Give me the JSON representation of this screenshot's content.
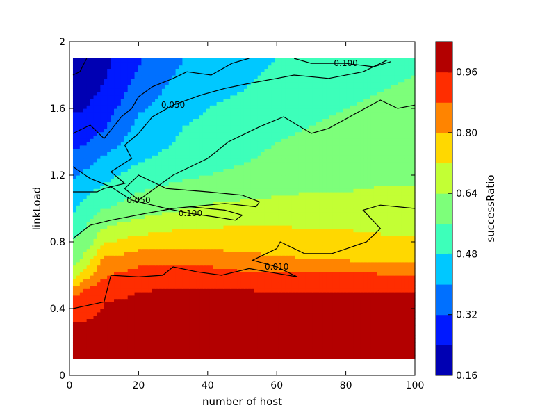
{
  "chart_data": {
    "type": "heatmap",
    "subtype": "filled-contour",
    "title": "",
    "xlabel": "number of host",
    "ylabel": "linkLoad",
    "xlim": [
      0,
      100
    ],
    "ylim": [
      0,
      2
    ],
    "x_ticks": [
      "0",
      "20",
      "40",
      "60",
      "80",
      "100"
    ],
    "y_ticks": [
      "0",
      "0.4",
      "0.8",
      "1.2",
      "1.6",
      "2"
    ],
    "grid": false,
    "colorbar": {
      "label": "successRatio",
      "range": [
        0.16,
        1.04
      ],
      "tick_labels": [
        "0.16",
        "0.32",
        "0.48",
        "0.64",
        "0.80",
        "0.96"
      ],
      "levels": [
        0.16,
        0.24,
        0.32,
        0.4,
        0.48,
        0.56,
        0.64,
        0.72,
        0.8,
        0.88,
        0.96,
        1.04
      ],
      "colors": [
        "#0000b3",
        "#0019ff",
        "#0070ff",
        "#00c8ff",
        "#3dffba",
        "#7dff7a",
        "#c3ff34",
        "#ffd800",
        "#ff8400",
        "#ff2d00",
        "#b30000"
      ]
    },
    "x": [
      1,
      5,
      10,
      20,
      30,
      40,
      50,
      60,
      70,
      80,
      90,
      100
    ],
    "y": [
      0.1,
      0.3,
      0.5,
      0.6,
      0.7,
      0.8,
      0.9,
      1.0,
      1.1,
      1.2,
      1.3,
      1.4,
      1.5,
      1.6,
      1.7,
      1.8,
      1.9
    ],
    "z": [
      [
        0.98,
        0.98,
        0.99,
        0.99,
        0.99,
        0.99,
        0.99,
        0.99,
        0.99,
        0.99,
        0.99,
        0.99
      ],
      [
        0.97,
        0.97,
        0.98,
        0.98,
        0.98,
        0.99,
        0.99,
        0.99,
        0.99,
        0.99,
        0.99,
        0.99
      ],
      [
        0.86,
        0.9,
        0.95,
        0.96,
        0.97,
        0.97,
        0.97,
        0.96,
        0.96,
        0.96,
        0.96,
        0.96
      ],
      [
        0.66,
        0.78,
        0.87,
        0.92,
        0.93,
        0.93,
        0.9,
        0.9,
        0.9,
        0.9,
        0.89,
        0.89
      ],
      [
        0.6,
        0.67,
        0.81,
        0.84,
        0.84,
        0.84,
        0.82,
        0.81,
        0.8,
        0.79,
        0.78,
        0.77
      ],
      [
        0.57,
        0.6,
        0.71,
        0.76,
        0.77,
        0.77,
        0.77,
        0.76,
        0.75,
        0.75,
        0.74,
        0.73
      ],
      [
        0.52,
        0.56,
        0.63,
        0.67,
        0.7,
        0.71,
        0.72,
        0.72,
        0.71,
        0.71,
        0.7,
        0.7
      ],
      [
        0.47,
        0.51,
        0.56,
        0.6,
        0.63,
        0.65,
        0.66,
        0.67,
        0.68,
        0.68,
        0.68,
        0.68
      ],
      [
        0.43,
        0.47,
        0.5,
        0.56,
        0.59,
        0.61,
        0.62,
        0.63,
        0.64,
        0.64,
        0.65,
        0.65
      ],
      [
        0.39,
        0.42,
        0.46,
        0.51,
        0.54,
        0.56,
        0.58,
        0.6,
        0.62,
        0.62,
        0.62,
        0.63
      ],
      [
        0.35,
        0.37,
        0.41,
        0.47,
        0.5,
        0.53,
        0.55,
        0.58,
        0.6,
        0.61,
        0.61,
        0.62
      ],
      [
        0.3,
        0.31,
        0.36,
        0.44,
        0.48,
        0.51,
        0.53,
        0.56,
        0.58,
        0.6,
        0.6,
        0.6
      ],
      [
        0.26,
        0.27,
        0.31,
        0.42,
        0.47,
        0.5,
        0.52,
        0.54,
        0.56,
        0.58,
        0.59,
        0.59
      ],
      [
        0.23,
        0.24,
        0.28,
        0.39,
        0.44,
        0.48,
        0.5,
        0.52,
        0.54,
        0.56,
        0.57,
        0.58
      ],
      [
        0.21,
        0.22,
        0.25,
        0.36,
        0.42,
        0.46,
        0.48,
        0.5,
        0.53,
        0.55,
        0.56,
        0.57
      ],
      [
        0.2,
        0.21,
        0.23,
        0.33,
        0.4,
        0.45,
        0.47,
        0.49,
        0.52,
        0.54,
        0.55,
        0.56
      ],
      [
        0.19,
        0.2,
        0.22,
        0.31,
        0.38,
        0.44,
        0.46,
        0.48,
        0.51,
        0.53,
        0.54,
        0.55
      ]
    ],
    "contour_lines": [
      {
        "level": "0.010",
        "points": [
          [
            1,
            0.4
          ],
          [
            10,
            0.44
          ],
          [
            12,
            0.6
          ],
          [
            20,
            0.59
          ],
          [
            27,
            0.6
          ],
          [
            30,
            0.65
          ],
          [
            37,
            0.62
          ],
          [
            44,
            0.6
          ],
          [
            52,
            0.64
          ],
          [
            66,
            0.59
          ],
          [
            60,
            0.65
          ],
          [
            53,
            0.69
          ],
          [
            60,
            0.76
          ],
          [
            61,
            0.8
          ],
          [
            68,
            0.73
          ],
          [
            76,
            0.73
          ],
          [
            86,
            0.8
          ],
          [
            90,
            0.88
          ],
          [
            85,
            0.99
          ],
          [
            90,
            1.02
          ],
          [
            100,
            1.0
          ]
        ]
      },
      {
        "level": "0.050",
        "points": [
          [
            1,
            0.82
          ],
          [
            6,
            0.9
          ],
          [
            12,
            0.93
          ],
          [
            22,
            0.97
          ],
          [
            30,
            1.0
          ],
          [
            45,
            1.03
          ],
          [
            54,
            1.01
          ],
          [
            55,
            1.04
          ],
          [
            50,
            1.08
          ],
          [
            40,
            1.1
          ],
          [
            28,
            1.12
          ],
          [
            20,
            1.2
          ],
          [
            16,
            1.12
          ],
          [
            20,
            1.05
          ],
          [
            30,
            1.2
          ],
          [
            35,
            1.25
          ],
          [
            40,
            1.3
          ],
          [
            46,
            1.4
          ],
          [
            55,
            1.49
          ],
          [
            62,
            1.55
          ],
          [
            70,
            1.45
          ],
          [
            75,
            1.48
          ],
          [
            82,
            1.56
          ],
          [
            90,
            1.65
          ],
          [
            95,
            1.6
          ],
          [
            100,
            1.62
          ]
        ]
      },
      {
        "level": "0.050",
        "points": [
          [
            1,
            1.1
          ],
          [
            8,
            1.1
          ],
          [
            10,
            1.12
          ],
          [
            16,
            1.15
          ],
          [
            12,
            1.22
          ],
          [
            18,
            1.3
          ],
          [
            16,
            1.38
          ],
          [
            20,
            1.45
          ],
          [
            24,
            1.55
          ],
          [
            30,
            1.62
          ],
          [
            38,
            1.68
          ],
          [
            45,
            1.72
          ],
          [
            52,
            1.75
          ],
          [
            60,
            1.78
          ],
          [
            65,
            1.8
          ],
          [
            75,
            1.78
          ],
          [
            85,
            1.82
          ],
          [
            92,
            1.89
          ]
        ]
      },
      {
        "level": "0.100",
        "points": [
          [
            1,
            1.25
          ],
          [
            6,
            1.18
          ],
          [
            12,
            1.13
          ],
          [
            18,
            1.05
          ],
          [
            22,
            1.03
          ],
          [
            28,
            1.0
          ],
          [
            35,
            0.97
          ],
          [
            42,
            0.95
          ],
          [
            48,
            0.93
          ],
          [
            50,
            0.96
          ],
          [
            45,
            0.99
          ],
          [
            35,
            1.01
          ]
        ]
      },
      {
        "level": "0.100",
        "points": [
          [
            65,
            1.9
          ],
          [
            70,
            1.87
          ],
          [
            80,
            1.87
          ],
          [
            88,
            1.85
          ],
          [
            93,
            1.88
          ]
        ]
      },
      {
        "level": "",
        "points": [
          [
            1,
            1.45
          ],
          [
            6,
            1.5
          ],
          [
            10,
            1.42
          ],
          [
            12,
            1.47
          ],
          [
            15,
            1.55
          ],
          [
            18,
            1.6
          ],
          [
            20,
            1.67
          ],
          [
            24,
            1.73
          ],
          [
            30,
            1.78
          ],
          [
            34,
            1.82
          ],
          [
            41,
            1.8
          ],
          [
            47,
            1.87
          ],
          [
            52,
            1.9
          ]
        ]
      },
      {
        "level": "",
        "points": [
          [
            5,
            1.9
          ],
          [
            3,
            1.82
          ],
          [
            1,
            1.8
          ]
        ]
      }
    ]
  }
}
